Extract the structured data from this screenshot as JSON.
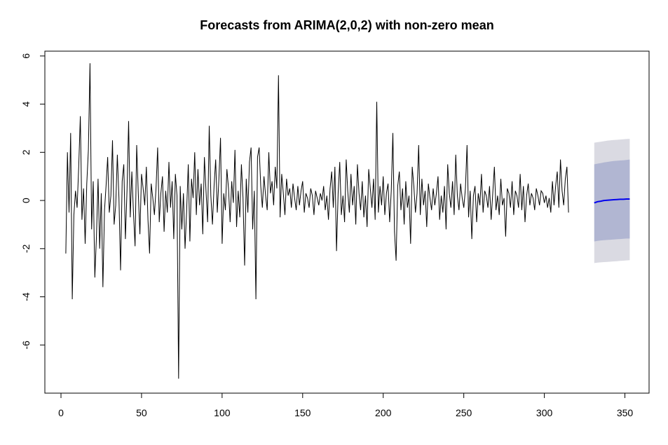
{
  "chart_data": {
    "type": "line",
    "title": "Forecasts from ARIMA(2,0,2) with non-zero mean",
    "xlabel": "",
    "ylabel": "",
    "xlim": [
      -10,
      365
    ],
    "ylim": [
      -8,
      6.2
    ],
    "x_ticks": [
      0,
      50,
      100,
      150,
      200,
      250,
      300,
      350
    ],
    "y_ticks": [
      -6,
      -4,
      -2,
      0,
      2,
      4,
      6
    ],
    "grid": false,
    "legend": "none",
    "history": {
      "start_x": 3,
      "color": "#000000",
      "values": [
        -2.2,
        2.0,
        -0.5,
        2.8,
        -4.1,
        -0.6,
        0.4,
        -0.3,
        1.4,
        3.5,
        -0.8,
        0.5,
        -1.8,
        0.7,
        2.1,
        5.7,
        -1.2,
        0.8,
        -3.2,
        -1.5,
        0.9,
        -2.0,
        0.3,
        -3.6,
        -0.4,
        0.6,
        1.8,
        -0.5,
        0.2,
        2.5,
        -1.0,
        -0.2,
        1.9,
        0.1,
        -2.9,
        0.8,
        1.5,
        -1.6,
        0.4,
        3.3,
        -0.7,
        1.2,
        -0.5,
        -1.9,
        2.3,
        0.3,
        -1.4,
        1.1,
        0.5,
        -0.2,
        1.4,
        -0.8,
        -2.2,
        0.7,
        0.1,
        -0.6,
        0.5,
        2.2,
        -0.9,
        0.3,
        1.0,
        -1.3,
        0.4,
        -0.5,
        1.6,
        -0.3,
        0.8,
        -1.6,
        1.1,
        0.2,
        -7.4,
        0.6,
        -1.2,
        0.3,
        -2.0,
        -0.4,
        1.5,
        -1.7,
        0.9,
        0.1,
        2.0,
        -0.6,
        1.3,
        -0.2,
        0.7,
        -1.4,
        1.8,
        0.4,
        -0.9,
        3.1,
        0.2,
        -1.0,
        0.6,
        1.7,
        -0.5,
        0.9,
        2.6,
        -1.8,
        0.3,
        -0.4,
        1.3,
        0.5,
        -0.9,
        0.8,
        -0.1,
        2.1,
        -1.1,
        0.4,
        -0.7,
        1.5,
        0.1,
        -2.7,
        0.9,
        -0.5,
        1.6,
        2.2,
        -1.2,
        0.4,
        -4.1,
        1.8,
        2.2,
        0.6,
        -0.3,
        1.0,
        0.2,
        -0.4,
        2.0,
        0.3,
        0.8,
        -0.2,
        1.4,
        0.5,
        5.2,
        -0.7,
        1.1,
        0.3,
        -0.6,
        0.9,
        0.2,
        0.5,
        -0.3,
        0.7,
        0.1,
        -0.4,
        0.6,
        -0.2,
        0.4,
        0.8,
        -0.5,
        0.3,
        0.1,
        -0.3,
        0.5,
        0.2,
        -0.6,
        0.4,
        0.1,
        -0.2,
        0.3,
        0.0,
        0.6,
        -0.4,
        0.2,
        -0.8,
        0.5,
        1.2,
        -0.3,
        1.4,
        -2.1,
        0.3,
        1.6,
        -0.6,
        0.2,
        -0.9,
        1.7,
        0.4,
        -0.5,
        1.1,
        -0.2,
        0.6,
        -1.0,
        1.5,
        0.3,
        -0.4,
        0.8,
        -0.7,
        0.2,
        -1.1,
        1.3,
        0.5,
        -0.3,
        0.9,
        -0.8,
        4.1,
        -0.5,
        0.6,
        -0.2,
        1.0,
        -0.6,
        0.3,
        0.7,
        -0.9,
        0.4,
        2.8,
        -1.3,
        -2.5,
        0.6,
        1.2,
        -0.4,
        0.5,
        -1.0,
        0.8,
        -0.3,
        0.2,
        -1.8,
        1.4,
        0.6,
        -0.5,
        0.3,
        2.3,
        -0.6,
        0.9,
        -0.2,
        0.4,
        -1.1,
        0.7,
        0.1,
        -0.4,
        0.5,
        -0.2,
        0.3,
        1.0,
        -0.8,
        0.2,
        -0.5,
        0.6,
        -1.2,
        1.5,
        0.3,
        -0.3,
        0.8,
        -0.6,
        1.9,
        0.2,
        -0.4,
        0.7,
        0.1,
        -0.3,
        0.5,
        2.3,
        -0.7,
        0.4,
        -1.6,
        0.2,
        0.6,
        -0.9,
        0.3,
        -0.2,
        1.1,
        -0.5,
        0.4,
        0.2,
        -0.3,
        0.6,
        -0.8,
        0.3,
        1.4,
        -0.4,
        0.2,
        -0.6,
        0.9,
        -0.2,
        0.1,
        -1.5,
        0.5,
        0.3,
        -0.3,
        0.8,
        -0.6,
        0.4,
        0.2,
        -0.3,
        1.1,
        -0.4,
        0.6,
        -0.9,
        0.2,
        0.7,
        -0.2,
        0.3,
        0.1,
        -0.4,
        0.5,
        0.2,
        -0.2,
        0.4,
        0.3,
        -0.1,
        0.2,
        -0.3,
        0.1,
        -0.5,
        0.8,
        -0.2,
        0.6,
        1.2,
        -0.3,
        1.7,
        0.4,
        -0.2,
        0.9,
        1.4,
        -0.5
      ]
    },
    "forecast": {
      "x": [
        331,
        333,
        335,
        337,
        339,
        341,
        343,
        345,
        347,
        349,
        351,
        353
      ],
      "mean": [
        -0.1,
        -0.05,
        -0.03,
        0.0,
        0.01,
        0.02,
        0.03,
        0.04,
        0.05,
        0.05,
        0.06,
        0.06
      ],
      "lo80": [
        -1.7,
        -1.68,
        -1.66,
        -1.65,
        -1.64,
        -1.63,
        -1.62,
        -1.61,
        -1.6,
        -1.59,
        -1.58,
        -1.58
      ],
      "hi80": [
        1.5,
        1.53,
        1.55,
        1.58,
        1.6,
        1.62,
        1.64,
        1.65,
        1.66,
        1.67,
        1.68,
        1.7
      ],
      "lo95": [
        -2.6,
        -2.58,
        -2.57,
        -2.56,
        -2.55,
        -2.54,
        -2.53,
        -2.52,
        -2.51,
        -2.5,
        -2.49,
        -2.48
      ],
      "hi95": [
        2.4,
        2.42,
        2.44,
        2.46,
        2.48,
        2.5,
        2.51,
        2.52,
        2.53,
        2.54,
        2.55,
        2.56
      ],
      "mean_color": "#0000ee",
      "band80_color": "#b1b6d2",
      "band95_color": "#dadae2"
    }
  }
}
